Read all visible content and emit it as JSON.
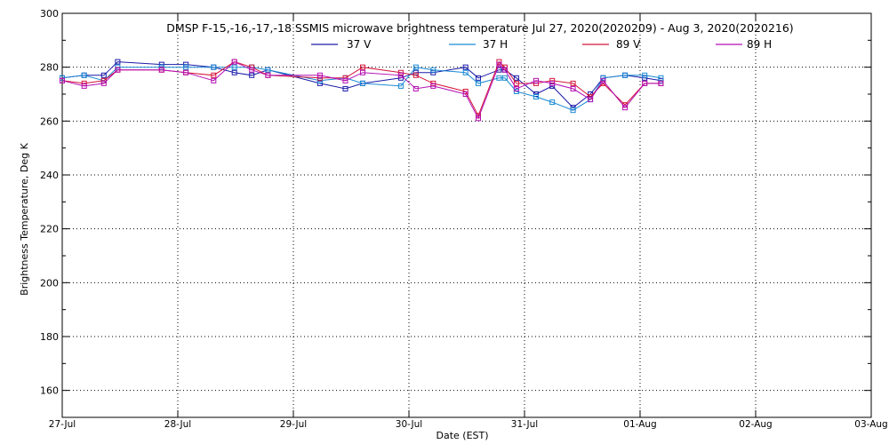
{
  "chart_data": {
    "type": "line",
    "title": "DMSP F-15,-16,-17,-18 SSMIS microwave brightness temperature Jul 27, 2020(2020209) - Aug  3, 2020(2020216)",
    "xlabel": "Date (EST)",
    "ylabel": "Brightness Temperature, Deg K",
    "x_ticks": [
      "27-Jul",
      "28-Jul",
      "29-Jul",
      "30-Jul",
      "31-Jul",
      "01-Aug",
      "02-Aug",
      "03-Aug"
    ],
    "xlim": [
      0,
      7
    ],
    "ylim": [
      150,
      300
    ],
    "y_ticks": [
      160,
      180,
      200,
      220,
      240,
      260,
      280,
      300
    ],
    "grid": true,
    "legend_position": "top-center",
    "series": [
      {
        "name": "37 V",
        "color": "#1a1aa8",
        "x": [
          0.0,
          0.19,
          0.36,
          0.48,
          0.86,
          1.07,
          1.31,
          1.49,
          1.64,
          1.78,
          2.23,
          2.45,
          2.6,
          2.93,
          3.06,
          3.21,
          3.49,
          3.6,
          3.78,
          3.83,
          3.93,
          4.1,
          4.24,
          4.42,
          4.57,
          4.68,
          4.87,
          5.04,
          5.18
        ],
        "y": [
          276,
          277,
          277,
          282,
          281,
          281,
          280,
          278,
          277,
          279,
          274,
          272,
          274,
          276,
          278,
          278,
          280,
          276,
          279,
          279,
          276,
          270,
          273,
          265,
          270,
          276,
          277,
          276,
          275
        ]
      },
      {
        "name": "37 H",
        "color": "#1a8ad4",
        "x": [
          0.0,
          0.19,
          0.36,
          0.48,
          0.86,
          1.07,
          1.31,
          1.49,
          1.64,
          1.78,
          2.23,
          2.45,
          2.6,
          2.93,
          3.06,
          3.21,
          3.49,
          3.6,
          3.78,
          3.83,
          3.93,
          4.1,
          4.24,
          4.42,
          4.57,
          4.68,
          4.87,
          5.04,
          5.18
        ],
        "y": [
          276,
          277,
          275,
          280,
          280,
          280,
          280,
          280,
          280,
          279,
          275,
          276,
          274,
          273,
          280,
          279,
          278,
          274,
          276,
          276,
          271,
          269,
          267,
          264,
          268,
          276,
          277,
          277,
          276
        ]
      },
      {
        "name": "89 V",
        "color": "#d4143a",
        "x": [
          0.0,
          0.19,
          0.36,
          0.48,
          0.86,
          1.07,
          1.31,
          1.49,
          1.64,
          1.78,
          2.23,
          2.45,
          2.6,
          2.93,
          3.06,
          3.21,
          3.49,
          3.6,
          3.78,
          3.83,
          3.93,
          4.1,
          4.24,
          4.42,
          4.57,
          4.68,
          4.87,
          5.04,
          5.18
        ],
        "y": [
          275,
          274,
          275,
          279,
          279,
          278,
          277,
          282,
          280,
          277,
          276,
          276,
          280,
          278,
          277,
          274,
          271,
          262,
          282,
          280,
          274,
          274,
          275,
          274,
          269,
          274,
          266,
          274,
          274
        ]
      },
      {
        "name": "89 H",
        "color": "#b40fb4",
        "x": [
          0.0,
          0.19,
          0.36,
          0.48,
          0.86,
          1.07,
          1.31,
          1.49,
          1.64,
          1.78,
          2.23,
          2.45,
          2.6,
          2.93,
          3.06,
          3.21,
          3.49,
          3.6,
          3.78,
          3.83,
          3.93,
          4.1,
          4.24,
          4.42,
          4.57,
          4.68,
          4.87,
          5.04,
          5.18
        ],
        "y": [
          275,
          273,
          274,
          279,
          279,
          278,
          275,
          282,
          279,
          277,
          277,
          275,
          278,
          277,
          272,
          273,
          270,
          261,
          281,
          279,
          272,
          275,
          274,
          272,
          268,
          275,
          265,
          274,
          274
        ]
      }
    ]
  }
}
